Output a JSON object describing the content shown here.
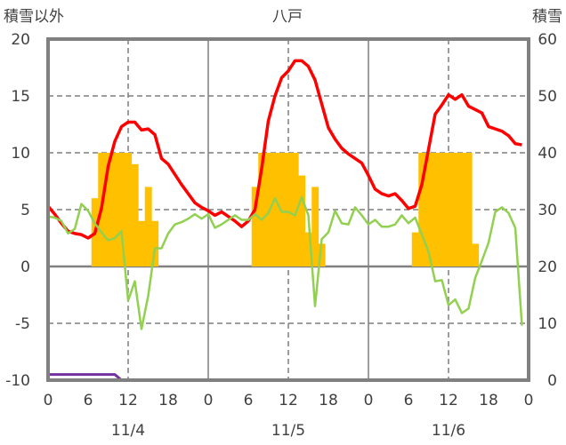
{
  "chart_data": {
    "type": "bar+line",
    "title": "八戸",
    "ylabel_left": "積雪以外",
    "ylabel_right": "積雪",
    "ylim_left": [
      -10,
      20
    ],
    "ylim_right": [
      0,
      60
    ],
    "yticks_left": [
      "20",
      "15",
      "10",
      "5",
      "0",
      "-5",
      "-10"
    ],
    "yticks_right": [
      "60",
      "50",
      "40",
      "30",
      "20",
      "10",
      "0"
    ],
    "xticks": [
      "0",
      "6",
      "12",
      "18",
      "0",
      "6",
      "12",
      "18",
      "0",
      "6",
      "12",
      "18",
      "0"
    ],
    "days": [
      "11/4",
      "11/5",
      "11/6"
    ],
    "grid": true,
    "colors": {
      "bars": "#FFC000",
      "red": "#FF0000",
      "green": "#92D050",
      "purple": "#7030A0",
      "frame": "#808080"
    },
    "bars": {
      "axis": "left",
      "hours": [
        7,
        8,
        9,
        10,
        11,
        12,
        13,
        14,
        15,
        16,
        31,
        32,
        33,
        34,
        35,
        36,
        37,
        38,
        39,
        40,
        41,
        55,
        56,
        57,
        58,
        59,
        60,
        61,
        62,
        63,
        64
      ],
      "values": [
        6,
        10,
        10,
        10,
        10,
        10,
        9,
        4,
        7,
        4,
        7,
        10,
        10,
        10,
        10,
        10,
        10,
        8,
        3,
        7,
        2,
        3,
        10,
        10,
        10,
        10,
        10,
        10,
        10,
        10,
        2
      ]
    },
    "series": [
      {
        "name": "red",
        "axis": "left",
        "values": [
          5.3,
          4.6,
          3.8,
          3.1,
          2.9,
          2.8,
          2.5,
          2.9,
          5.1,
          8.8,
          11,
          12.3,
          12.7,
          12.7,
          12.0,
          12.1,
          11.6,
          9.5,
          9.0,
          8.1,
          7.2,
          6.4,
          5.6,
          5.2,
          4.9,
          4.5,
          4.8,
          4.4,
          4.0,
          3.5,
          4.0,
          5.0,
          8.6,
          12.8,
          15.0,
          16.6,
          17.2,
          18.1,
          18.1,
          17.6,
          16.4,
          14.3,
          12.2,
          11.2,
          10.4,
          9.9,
          9.5,
          9.1,
          8.0,
          6.8,
          6.4,
          6.2,
          6.4,
          5.8,
          5.1,
          5.3,
          7.2,
          10.3,
          13.4,
          14.2,
          15.1,
          14.7,
          15.1,
          14.1,
          13.8,
          13.5,
          12.3,
          12.1,
          11.9,
          11.5,
          10.8,
          10.7
        ]
      },
      {
        "name": "green",
        "axis": "left",
        "values": [
          4.4,
          4.3,
          4.0,
          2.9,
          3.3,
          5.5,
          4.9,
          3.8,
          3.0,
          2.3,
          2.5,
          3.1,
          -3.0,
          -1.3,
          -5.5,
          -2.6,
          1.6,
          1.6,
          2.9,
          3.7,
          3.9,
          4.2,
          4.6,
          4.2,
          4.6,
          3.4,
          3.7,
          4.1,
          4.5,
          4.1,
          4.1,
          4.6,
          4.1,
          4.7,
          6.0,
          4.8,
          4.8,
          4.5,
          6.1,
          4.5,
          -3.5,
          2.4,
          3.0,
          4.9,
          3.8,
          3.7,
          5.2,
          4.5,
          3.7,
          4.1,
          3.5,
          3.5,
          3.7,
          4.5,
          3.8,
          4.3,
          2.8,
          1.3,
          -1.3,
          -1.2,
          -3.4,
          -2.9,
          -4.1,
          -3.7,
          -1.0,
          0.5,
          2.1,
          4.8,
          5.2,
          4.7,
          3.4,
          -5.2
        ]
      },
      {
        "name": "purple",
        "axis": "right",
        "values": [
          1,
          1,
          1,
          1,
          1,
          1,
          1,
          1,
          1,
          1,
          1,
          0,
          0,
          0,
          0,
          0,
          0,
          0,
          0,
          0,
          0,
          0,
          0,
          0,
          0,
          0,
          0,
          0,
          0,
          0,
          0,
          0,
          0,
          0,
          0,
          0,
          0,
          0,
          0,
          0,
          0,
          0,
          0,
          0,
          0,
          0,
          0,
          0,
          0,
          0,
          0,
          0,
          0,
          0,
          0,
          0,
          0,
          0,
          0,
          0,
          0,
          0,
          0,
          0,
          0,
          0,
          0,
          0,
          0,
          0,
          0,
          0
        ]
      }
    ]
  }
}
